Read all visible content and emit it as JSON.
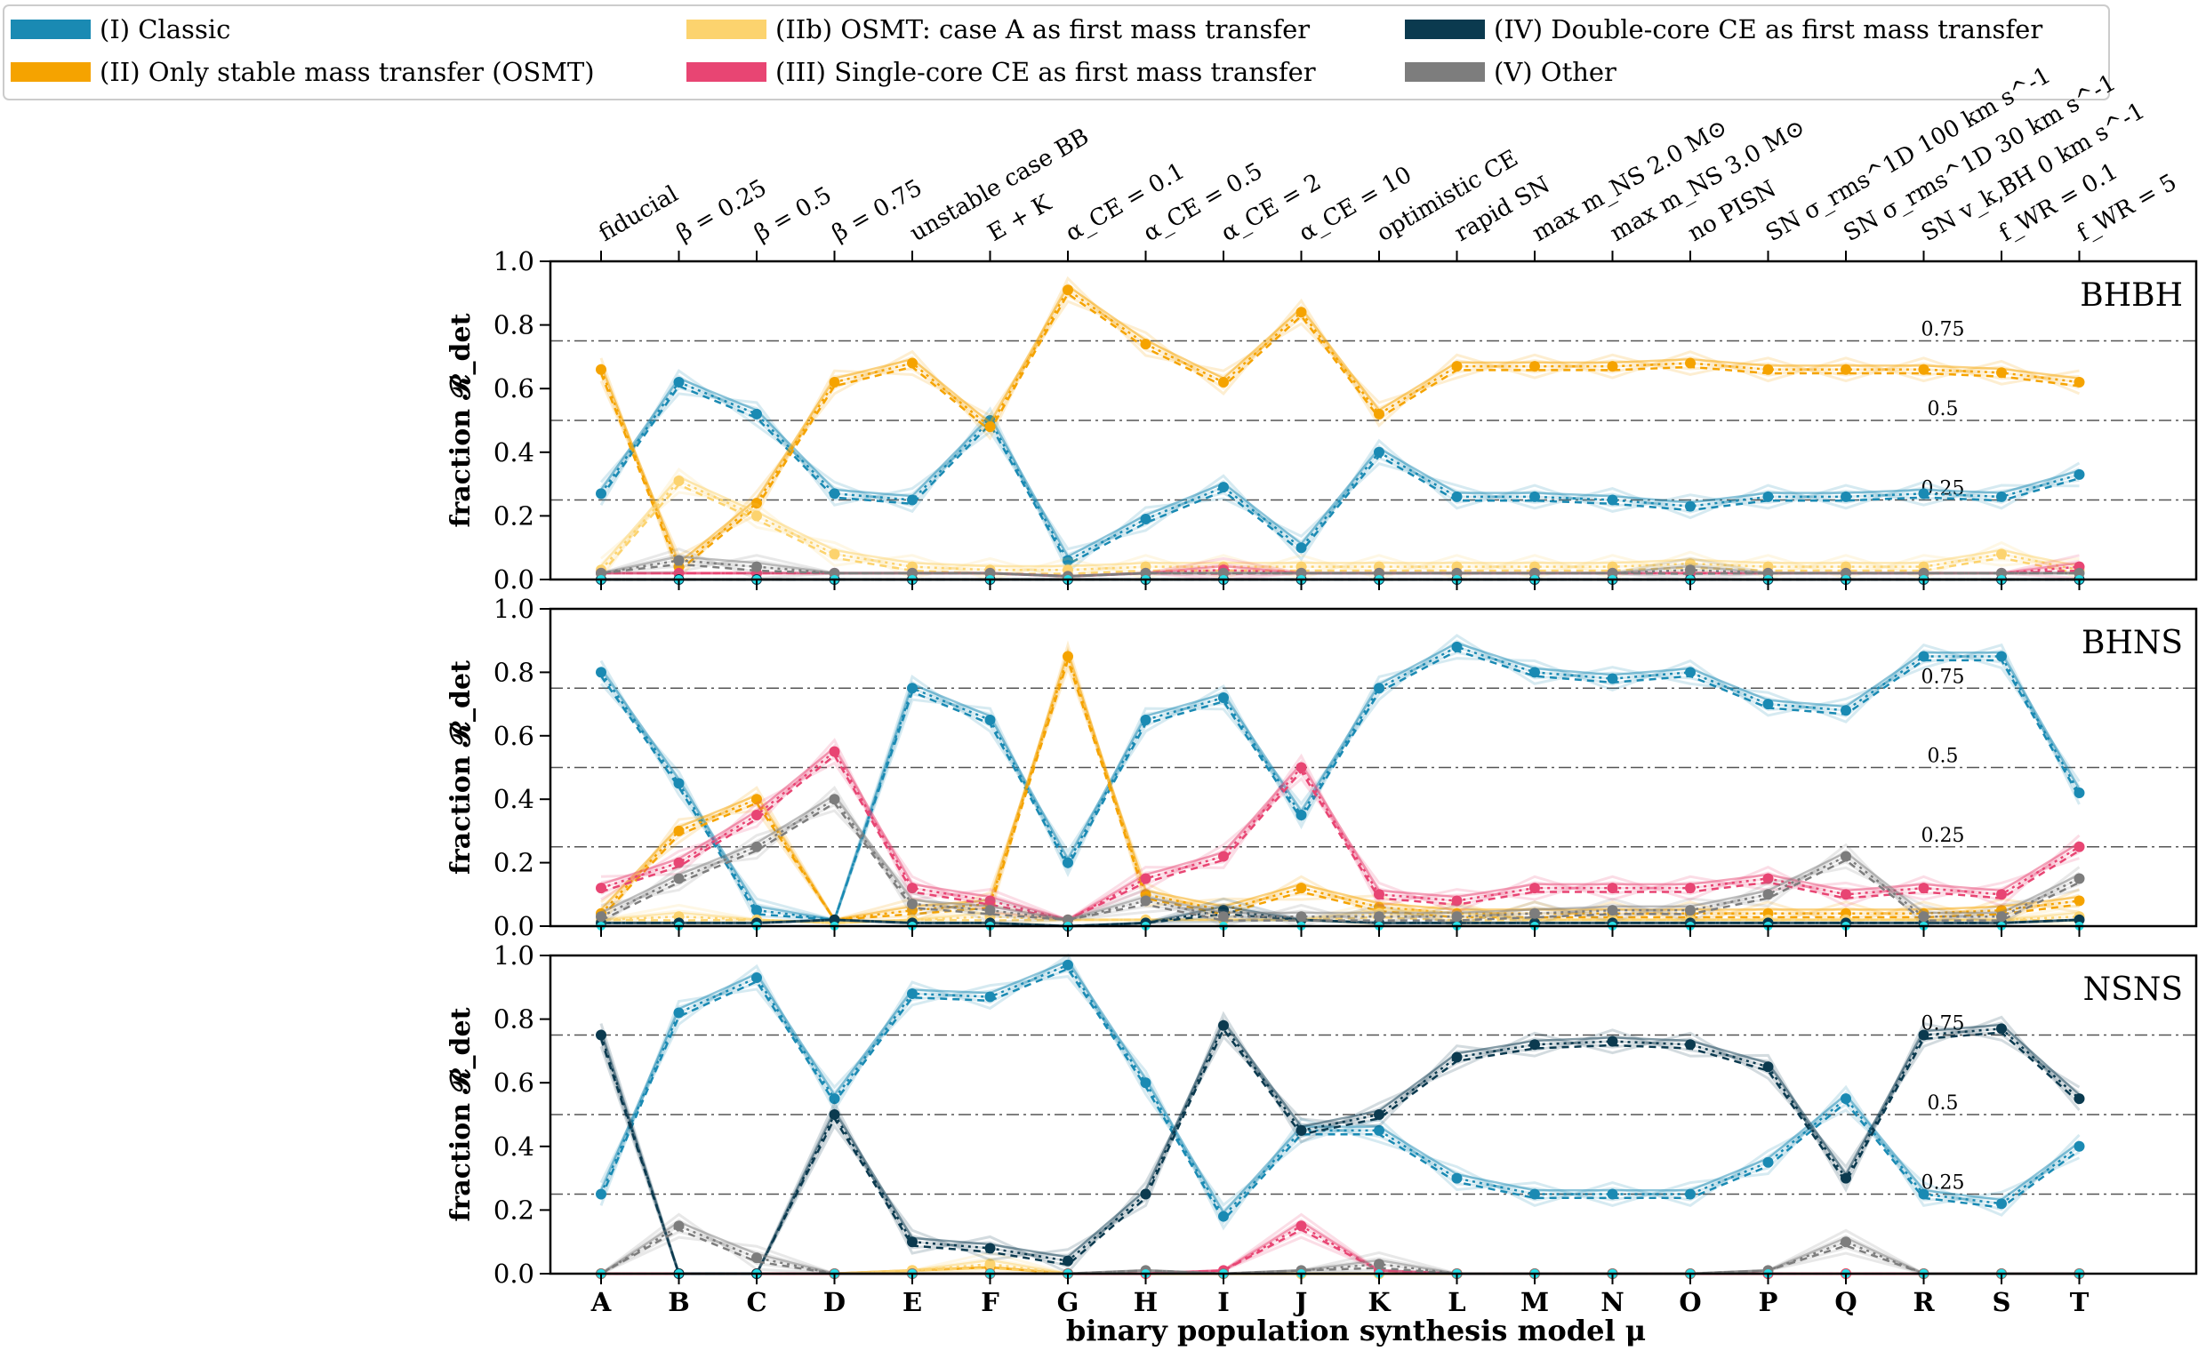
{
  "legend": {
    "items": [
      {
        "key": "I",
        "label": "(I) Classic",
        "color": "#1a8ab3"
      },
      {
        "key": "II",
        "label": "(II) Only stable mass transfer (OSMT)",
        "color": "#f5a300"
      },
      {
        "key": "IIb",
        "label": "(IIb) OSMT: case A as first mass transfer",
        "color": "#fcd36e"
      },
      {
        "key": "III",
        "label": "(III) Single-core CE as first mass transfer",
        "color": "#e84573"
      },
      {
        "key": "IV",
        "label": "(IV) Double-core CE as first mass transfer",
        "color": "#0b3a4f"
      },
      {
        "key": "V",
        "label": "(V) Other",
        "color": "#7d7d7d"
      }
    ]
  },
  "top_labels": [
    "fiducial",
    "β = 0.25",
    "β = 0.5",
    "β = 0.75",
    "unstable case BB",
    "E + K",
    "α_CE = 0.1",
    "α_CE = 0.5",
    "α_CE = 2",
    "α_CE = 10",
    "optimistic CE",
    "rapid SN",
    "max m_NS 2.0 M⊙",
    "max m_NS 3.0 M⊙",
    "no PISN",
    "SN σ_rms^1D 100 km s^-1",
    "SN σ_rms^1D 30 km s^-1",
    "SN v_k,BH 0 km s^-1",
    "f_WR = 0.1",
    "f_WR = 5"
  ],
  "xlabel": "binary population synthesis model μ",
  "ylabel": "fraction 𝓡_det",
  "hline_labels": [
    "0.75",
    "0.5",
    "0.25"
  ],
  "chart_data": [
    {
      "type": "line",
      "panel": "BHBH",
      "categories": [
        "A",
        "B",
        "C",
        "D",
        "E",
        "F",
        "G",
        "H",
        "I",
        "J",
        "K",
        "L",
        "M",
        "N",
        "O",
        "P",
        "Q",
        "R",
        "S",
        "T"
      ],
      "ylim": [
        0,
        1
      ],
      "yticks": [
        "0.0",
        "0.2",
        "0.4",
        "0.6",
        "0.8",
        "1.0"
      ],
      "hlines": [
        0.25,
        0.5,
        0.75
      ],
      "series": [
        {
          "key": "I",
          "values": [
            0.27,
            0.62,
            0.52,
            0.27,
            0.25,
            0.5,
            0.06,
            0.19,
            0.29,
            0.1,
            0.4,
            0.26,
            0.26,
            0.25,
            0.23,
            0.26,
            0.26,
            0.27,
            0.26,
            0.33
          ]
        },
        {
          "key": "II",
          "values": [
            0.66,
            0.04,
            0.24,
            0.62,
            0.68,
            0.48,
            0.91,
            0.74,
            0.62,
            0.84,
            0.52,
            0.67,
            0.67,
            0.67,
            0.68,
            0.66,
            0.66,
            0.66,
            0.65,
            0.62
          ]
        },
        {
          "key": "IIb",
          "values": [
            0.03,
            0.31,
            0.2,
            0.08,
            0.04,
            0.03,
            0.03,
            0.04,
            0.04,
            0.04,
            0.04,
            0.04,
            0.04,
            0.04,
            0.05,
            0.04,
            0.04,
            0.04,
            0.08,
            0.03
          ]
        },
        {
          "key": "III",
          "values": [
            0.02,
            0.02,
            0.02,
            0.02,
            0.02,
            0.02,
            0.01,
            0.02,
            0.03,
            0.02,
            0.02,
            0.02,
            0.02,
            0.02,
            0.02,
            0.02,
            0.02,
            0.02,
            0.02,
            0.04
          ]
        },
        {
          "key": "IV",
          "values": [
            0.0,
            0.0,
            0.0,
            0.0,
            0.0,
            0.0,
            0.0,
            0.0,
            0.0,
            0.0,
            0.0,
            0.0,
            0.0,
            0.0,
            0.0,
            0.0,
            0.0,
            0.0,
            0.0,
            0.0
          ]
        },
        {
          "key": "V",
          "values": [
            0.02,
            0.06,
            0.04,
            0.02,
            0.02,
            0.02,
            0.01,
            0.02,
            0.02,
            0.02,
            0.02,
            0.02,
            0.02,
            0.02,
            0.03,
            0.02,
            0.02,
            0.02,
            0.02,
            0.02
          ]
        }
      ]
    },
    {
      "type": "line",
      "panel": "BHNS",
      "categories": [
        "A",
        "B",
        "C",
        "D",
        "E",
        "F",
        "G",
        "H",
        "I",
        "J",
        "K",
        "L",
        "M",
        "N",
        "O",
        "P",
        "Q",
        "R",
        "S",
        "T"
      ],
      "ylim": [
        0,
        1
      ],
      "yticks": [
        "0.0",
        "0.2",
        "0.4",
        "0.6",
        "0.8",
        "1.0"
      ],
      "hlines": [
        0.25,
        0.5,
        0.75
      ],
      "series": [
        {
          "key": "I",
          "values": [
            0.8,
            0.45,
            0.05,
            0.02,
            0.75,
            0.65,
            0.2,
            0.65,
            0.72,
            0.35,
            0.75,
            0.88,
            0.8,
            0.78,
            0.8,
            0.7,
            0.68,
            0.85,
            0.85,
            0.42
          ]
        },
        {
          "key": "II",
          "values": [
            0.04,
            0.3,
            0.4,
            0.02,
            0.05,
            0.07,
            0.85,
            0.1,
            0.05,
            0.12,
            0.06,
            0.04,
            0.04,
            0.04,
            0.04,
            0.04,
            0.04,
            0.04,
            0.05,
            0.08
          ]
        },
        {
          "key": "IIb",
          "values": [
            0.02,
            0.03,
            0.02,
            0.01,
            0.02,
            0.03,
            0.02,
            0.02,
            0.02,
            0.02,
            0.04,
            0.03,
            0.02,
            0.02,
            0.02,
            0.02,
            0.02,
            0.02,
            0.02,
            0.03
          ]
        },
        {
          "key": "III",
          "values": [
            0.12,
            0.2,
            0.35,
            0.55,
            0.12,
            0.08,
            0.02,
            0.15,
            0.22,
            0.5,
            0.1,
            0.08,
            0.12,
            0.12,
            0.12,
            0.15,
            0.1,
            0.12,
            0.1,
            0.25
          ]
        },
        {
          "key": "IV",
          "values": [
            0.01,
            0.01,
            0.01,
            0.02,
            0.01,
            0.01,
            0.0,
            0.01,
            0.05,
            0.02,
            0.01,
            0.01,
            0.01,
            0.01,
            0.01,
            0.01,
            0.01,
            0.01,
            0.01,
            0.02
          ]
        },
        {
          "key": "V",
          "values": [
            0.03,
            0.15,
            0.25,
            0.4,
            0.07,
            0.05,
            0.02,
            0.08,
            0.03,
            0.03,
            0.03,
            0.03,
            0.04,
            0.05,
            0.05,
            0.1,
            0.22,
            0.03,
            0.03,
            0.15
          ]
        }
      ]
    },
    {
      "type": "line",
      "panel": "NSNS",
      "categories": [
        "A",
        "B",
        "C",
        "D",
        "E",
        "F",
        "G",
        "H",
        "I",
        "J",
        "K",
        "L",
        "M",
        "N",
        "O",
        "P",
        "Q",
        "R",
        "S",
        "T"
      ],
      "ylim": [
        0,
        1
      ],
      "yticks": [
        "0.0",
        "0.2",
        "0.4",
        "0.6",
        "0.8",
        "1.0"
      ],
      "hlines": [
        0.25,
        0.5,
        0.75
      ],
      "series": [
        {
          "key": "I",
          "values": [
            0.25,
            0.82,
            0.93,
            0.55,
            0.88,
            0.87,
            0.97,
            0.6,
            0.18,
            0.45,
            0.45,
            0.3,
            0.25,
            0.25,
            0.25,
            0.35,
            0.55,
            0.25,
            0.22,
            0.4
          ]
        },
        {
          "key": "II",
          "values": [
            0.0,
            0.0,
            0.0,
            0.0,
            0.01,
            0.02,
            0.0,
            0.0,
            0.0,
            0.0,
            0.0,
            0.0,
            0.0,
            0.0,
            0.0,
            0.0,
            0.0,
            0.0,
            0.0,
            0.0
          ]
        },
        {
          "key": "IIb",
          "values": [
            0.0,
            0.0,
            0.0,
            0.0,
            0.01,
            0.03,
            0.0,
            0.0,
            0.0,
            0.0,
            0.0,
            0.0,
            0.0,
            0.0,
            0.0,
            0.0,
            0.0,
            0.0,
            0.0,
            0.0
          ]
        },
        {
          "key": "III",
          "values": [
            0.0,
            0.0,
            0.0,
            0.0,
            0.0,
            0.0,
            0.0,
            0.0,
            0.01,
            0.15,
            0.01,
            0.0,
            0.0,
            0.0,
            0.0,
            0.0,
            0.0,
            0.0,
            0.0,
            0.0
          ]
        },
        {
          "key": "IV",
          "values": [
            0.75,
            0.0,
            0.0,
            0.5,
            0.1,
            0.08,
            0.04,
            0.25,
            0.78,
            0.45,
            0.5,
            0.68,
            0.72,
            0.73,
            0.72,
            0.65,
            0.3,
            0.75,
            0.77,
            0.55
          ]
        },
        {
          "key": "V",
          "values": [
            0.0,
            0.15,
            0.05,
            0.0,
            0.0,
            0.0,
            0.0,
            0.01,
            0.0,
            0.01,
            0.03,
            0.0,
            0.0,
            0.0,
            0.0,
            0.01,
            0.1,
            0.0,
            0.0,
            0.0
          ]
        }
      ]
    }
  ]
}
